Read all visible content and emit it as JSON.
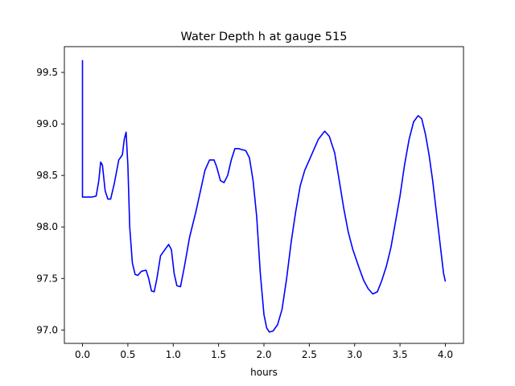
{
  "chart_data": {
    "type": "line",
    "title": "Water Depth h at gauge 515",
    "xlabel": "hours",
    "ylabel": "",
    "xlim": [
      -0.2,
      4.2
    ],
    "ylim": [
      96.87,
      99.75
    ],
    "xticks": [
      0.0,
      0.5,
      1.0,
      1.5,
      2.0,
      2.5,
      3.0,
      3.5,
      4.0
    ],
    "xtick_labels": [
      "0.0",
      "0.5",
      "1.0",
      "1.5",
      "2.0",
      "2.5",
      "3.0",
      "3.5",
      "4.0"
    ],
    "yticks": [
      97.0,
      97.5,
      98.0,
      98.5,
      99.0,
      99.5
    ],
    "ytick_labels": [
      "97.0",
      "97.5",
      "98.0",
      "98.5",
      "99.0",
      "99.5"
    ],
    "grid": false,
    "series": [
      {
        "color": "#0000ff",
        "x": [
          0.0,
          0.0,
          0.0,
          0.05,
          0.1,
          0.15,
          0.18,
          0.2,
          0.22,
          0.25,
          0.28,
          0.31,
          0.35,
          0.4,
          0.44,
          0.46,
          0.48,
          0.5,
          0.52,
          0.55,
          0.58,
          0.61,
          0.65,
          0.7,
          0.73,
          0.76,
          0.79,
          0.82,
          0.86,
          0.9,
          0.95,
          0.98,
          1.01,
          1.04,
          1.08,
          1.12,
          1.18,
          1.25,
          1.3,
          1.35,
          1.4,
          1.45,
          1.48,
          1.52,
          1.56,
          1.6,
          1.64,
          1.68,
          1.72,
          1.76,
          1.8,
          1.84,
          1.88,
          1.92,
          1.96,
          2.0,
          2.03,
          2.06,
          2.1,
          2.15,
          2.2,
          2.25,
          2.3,
          2.35,
          2.4,
          2.45,
          2.5,
          2.55,
          2.6,
          2.67,
          2.72,
          2.78,
          2.83,
          2.88,
          2.93,
          2.98,
          3.05,
          3.1,
          3.15,
          3.2,
          3.25,
          3.3,
          3.35,
          3.4,
          3.45,
          3.5,
          3.55,
          3.6,
          3.65,
          3.7,
          3.74,
          3.78,
          3.82,
          3.86,
          3.9,
          3.94,
          3.98,
          4.0
        ],
        "y": [
          99.62,
          99.4,
          98.29,
          98.29,
          98.29,
          98.3,
          98.45,
          98.63,
          98.6,
          98.35,
          98.27,
          98.27,
          98.42,
          98.65,
          98.7,
          98.85,
          98.92,
          98.6,
          98.0,
          97.65,
          97.54,
          97.53,
          97.57,
          97.58,
          97.5,
          97.38,
          97.37,
          97.5,
          97.72,
          97.77,
          97.83,
          97.78,
          97.55,
          97.43,
          97.42,
          97.6,
          97.9,
          98.15,
          98.35,
          98.55,
          98.65,
          98.65,
          98.58,
          98.45,
          98.43,
          98.5,
          98.65,
          98.76,
          98.76,
          98.75,
          98.74,
          98.67,
          98.45,
          98.1,
          97.55,
          97.15,
          97.02,
          96.98,
          96.99,
          97.05,
          97.2,
          97.5,
          97.85,
          98.15,
          98.4,
          98.55,
          98.65,
          98.75,
          98.85,
          98.93,
          98.88,
          98.72,
          98.45,
          98.18,
          97.95,
          97.78,
          97.6,
          97.48,
          97.4,
          97.35,
          97.37,
          97.48,
          97.62,
          97.8,
          98.05,
          98.3,
          98.6,
          98.85,
          99.02,
          99.08,
          99.05,
          98.9,
          98.7,
          98.45,
          98.15,
          97.85,
          97.55,
          97.47
        ]
      }
    ]
  }
}
